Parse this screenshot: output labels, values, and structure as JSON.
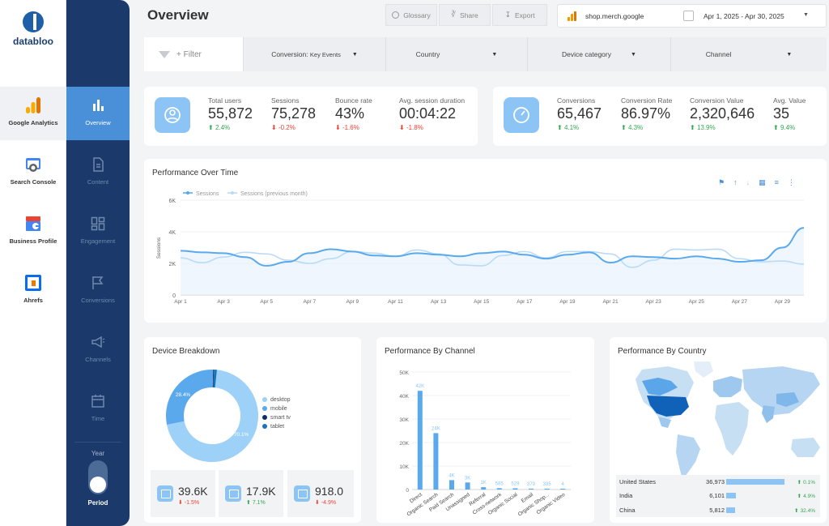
{
  "brand": {
    "name": "databloo"
  },
  "rail": [
    {
      "label": "Google Analytics",
      "icon": "google-analytics-icon"
    },
    {
      "label": "Search Console",
      "icon": "search-console-icon"
    },
    {
      "label": "Business Profile",
      "icon": "business-profile-icon"
    },
    {
      "label": "Ahrefs",
      "icon": "ahrefs-icon"
    }
  ],
  "subnav": [
    {
      "label": "Overview",
      "icon": "bar-chart-icon"
    },
    {
      "label": "Content",
      "icon": "document-icon"
    },
    {
      "label": "Engagement",
      "icon": "dashboard-icon"
    },
    {
      "label": "Conversions",
      "icon": "flag-icon"
    },
    {
      "label": "Channels",
      "icon": "megaphone-icon"
    },
    {
      "label": "Time",
      "icon": "calendar-icon"
    }
  ],
  "period_toggle": {
    "top_label": "Year",
    "bottom_label": "Period"
  },
  "header": {
    "title": "Overview",
    "glossary": "Glossary",
    "share": "Share",
    "export": "Export",
    "site": "shop.merch.google",
    "date_range": "Apr 1, 2025 - Apr 30, 2025"
  },
  "filters": {
    "add_label": "+ Filter",
    "conversion_label": "Conversion:",
    "conversion_value": "Key Events",
    "country": "Country",
    "device_category": "Device category",
    "channel": "Channel"
  },
  "kpis_traffic": [
    {
      "title": "Total users",
      "value": "55,872",
      "delta": "2.4%",
      "dir": "up"
    },
    {
      "title": "Sessions",
      "value": "75,278",
      "delta": "-0.2%",
      "dir": "down"
    },
    {
      "title": "Bounce rate",
      "value": "43%",
      "delta": "-1.6%",
      "dir": "down"
    },
    {
      "title": "Avg. session duration",
      "value": "00:04:22",
      "delta": "-1.8%",
      "dir": "down"
    }
  ],
  "kpis_conversion": [
    {
      "title": "Conversions",
      "value": "65,467",
      "delta": "4.1%",
      "dir": "up"
    },
    {
      "title": "Conversion Rate",
      "value": "86.97%",
      "delta": "4.3%",
      "dir": "up"
    },
    {
      "title": "Conversion Value",
      "value": "2,320,646",
      "delta": "13.9%",
      "dir": "up"
    },
    {
      "title": "Avg. Value",
      "value": "35",
      "delta": "9.4%",
      "dir": "up"
    }
  ],
  "performance_over_time": {
    "title": "Performance Over Time",
    "legend": [
      "Sessions",
      "Sessions (previous month)"
    ],
    "ylabel": "Sessions",
    "yticks": [
      "0",
      "2K",
      "4K",
      "6K"
    ],
    "xticks": [
      "Apr 1",
      "Apr 3",
      "Apr 5",
      "Apr 7",
      "Apr 9",
      "Apr 11",
      "Apr 13",
      "Apr 15",
      "Apr 17",
      "Apr 19",
      "Apr 21",
      "Apr 23",
      "Apr 25",
      "Apr 27",
      "Apr 29"
    ]
  },
  "device_breakdown": {
    "title": "Device Breakdown",
    "slice_labels": [
      "70.1%",
      "28.4%"
    ],
    "legend": [
      "desktop",
      "mobile",
      "smart tv",
      "tablet"
    ],
    "colors": [
      "#9dd1f7",
      "#5aa9ec",
      "#0d2f63",
      "#1a73b8"
    ],
    "tiles": [
      {
        "value": "39.6K",
        "delta": "-1.5%",
        "dir": "down",
        "icon": "desktop-icon"
      },
      {
        "value": "17.9K",
        "delta": "7.1%",
        "dir": "up",
        "icon": "mobile-icon"
      },
      {
        "value": "918.0",
        "delta": "-4.9%",
        "dir": "down",
        "icon": "tablet-icon"
      }
    ]
  },
  "channel_chart": {
    "title": "Performance By Channel",
    "yticks": [
      "0",
      "10K",
      "20K",
      "30K",
      "40K",
      "50K"
    ]
  },
  "country_panel": {
    "title": "Performance By Country",
    "rows": [
      {
        "country": "United States",
        "sessions": "36,973",
        "delta": "0.1%",
        "dir": "up"
      },
      {
        "country": "India",
        "sessions": "6,101",
        "delta": "4.9%",
        "dir": "up"
      },
      {
        "country": "China",
        "sessions": "5,812",
        "delta": "32.4%",
        "dir": "up"
      }
    ]
  },
  "chart_data": [
    {
      "type": "line",
      "title": "Performance Over Time",
      "ylabel": "Sessions",
      "ylim": [
        0,
        6000
      ],
      "x": [
        "Apr 1",
        "Apr 2",
        "Apr 3",
        "Apr 4",
        "Apr 5",
        "Apr 6",
        "Apr 7",
        "Apr 8",
        "Apr 9",
        "Apr 10",
        "Apr 11",
        "Apr 12",
        "Apr 13",
        "Apr 14",
        "Apr 15",
        "Apr 16",
        "Apr 17",
        "Apr 18",
        "Apr 19",
        "Apr 20",
        "Apr 21",
        "Apr 22",
        "Apr 23",
        "Apr 24",
        "Apr 25",
        "Apr 26",
        "Apr 27",
        "Apr 28",
        "Apr 29",
        "Apr 30"
      ],
      "series": [
        {
          "name": "Sessions",
          "values": [
            2800,
            2700,
            2650,
            2400,
            1850,
            2100,
            2650,
            2900,
            2750,
            2500,
            2450,
            2650,
            2550,
            2450,
            2650,
            2750,
            2550,
            2300,
            2550,
            2700,
            2050,
            2450,
            2400,
            2300,
            2450,
            2300,
            2100,
            2200,
            3000,
            4250
          ]
        },
        {
          "name": "Sessions (previous month)",
          "values": [
            2350,
            2050,
            2400,
            2700,
            2600,
            2200,
            2000,
            2300,
            2750,
            2650,
            2450,
            2850,
            2600,
            1900,
            1850,
            2500,
            2750,
            2350,
            2750,
            2750,
            2600,
            1750,
            2200,
            2900,
            2850,
            2900,
            2300,
            2100,
            2150,
            1950
          ]
        }
      ],
      "grid": true,
      "legend": "top-left"
    },
    {
      "type": "pie",
      "title": "Device Breakdown",
      "categories": [
        "desktop",
        "mobile",
        "smart tv",
        "tablet"
      ],
      "values": [
        70.1,
        28.4,
        0.3,
        1.2
      ]
    },
    {
      "type": "bar",
      "title": "Performance By Channel",
      "categories": [
        "Direct",
        "Organic Search",
        "Paid Search",
        "Unassigned",
        "Referral",
        "Cross-network",
        "Organic Social",
        "Email",
        "Organic Shop...",
        "Organic Video"
      ],
      "values": [
        42000,
        24000,
        4000,
        3000,
        1000,
        585,
        529,
        379,
        335,
        4
      ],
      "data_labels": [
        "42K",
        "24K",
        "4K",
        "3K",
        "1K",
        "585",
        "529",
        "379",
        "335",
        "4"
      ],
      "ylim": [
        0,
        50000
      ]
    }
  ]
}
